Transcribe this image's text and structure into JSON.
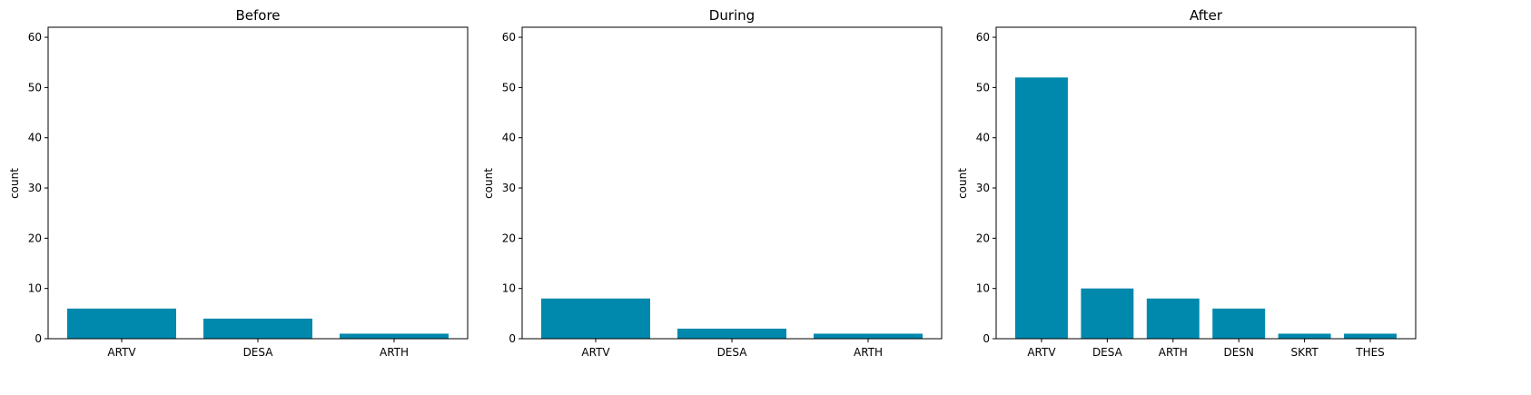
{
  "bar_color": "#0088ad",
  "chart_data": [
    {
      "type": "bar",
      "title": "Before",
      "ylabel": "count",
      "xlabel": "",
      "categories": [
        "ARTV",
        "DESA",
        "ARTH"
      ],
      "values": [
        6,
        4,
        1
      ],
      "ylim": [
        0,
        62
      ],
      "yticks": [
        0,
        10,
        20,
        30,
        40,
        50,
        60
      ]
    },
    {
      "type": "bar",
      "title": "During",
      "ylabel": "count",
      "xlabel": "",
      "categories": [
        "ARTV",
        "DESA",
        "ARTH"
      ],
      "values": [
        8,
        2,
        1
      ],
      "ylim": [
        0,
        62
      ],
      "yticks": [
        0,
        10,
        20,
        30,
        40,
        50,
        60
      ]
    },
    {
      "type": "bar",
      "title": "After",
      "ylabel": "count",
      "xlabel": "",
      "categories": [
        "ARTV",
        "DESA",
        "ARTH",
        "DESN",
        "SKRT",
        "THES"
      ],
      "values": [
        52,
        10,
        8,
        6,
        1,
        1
      ],
      "ylim": [
        0,
        62
      ],
      "yticks": [
        0,
        10,
        20,
        30,
        40,
        50,
        60
      ]
    }
  ]
}
